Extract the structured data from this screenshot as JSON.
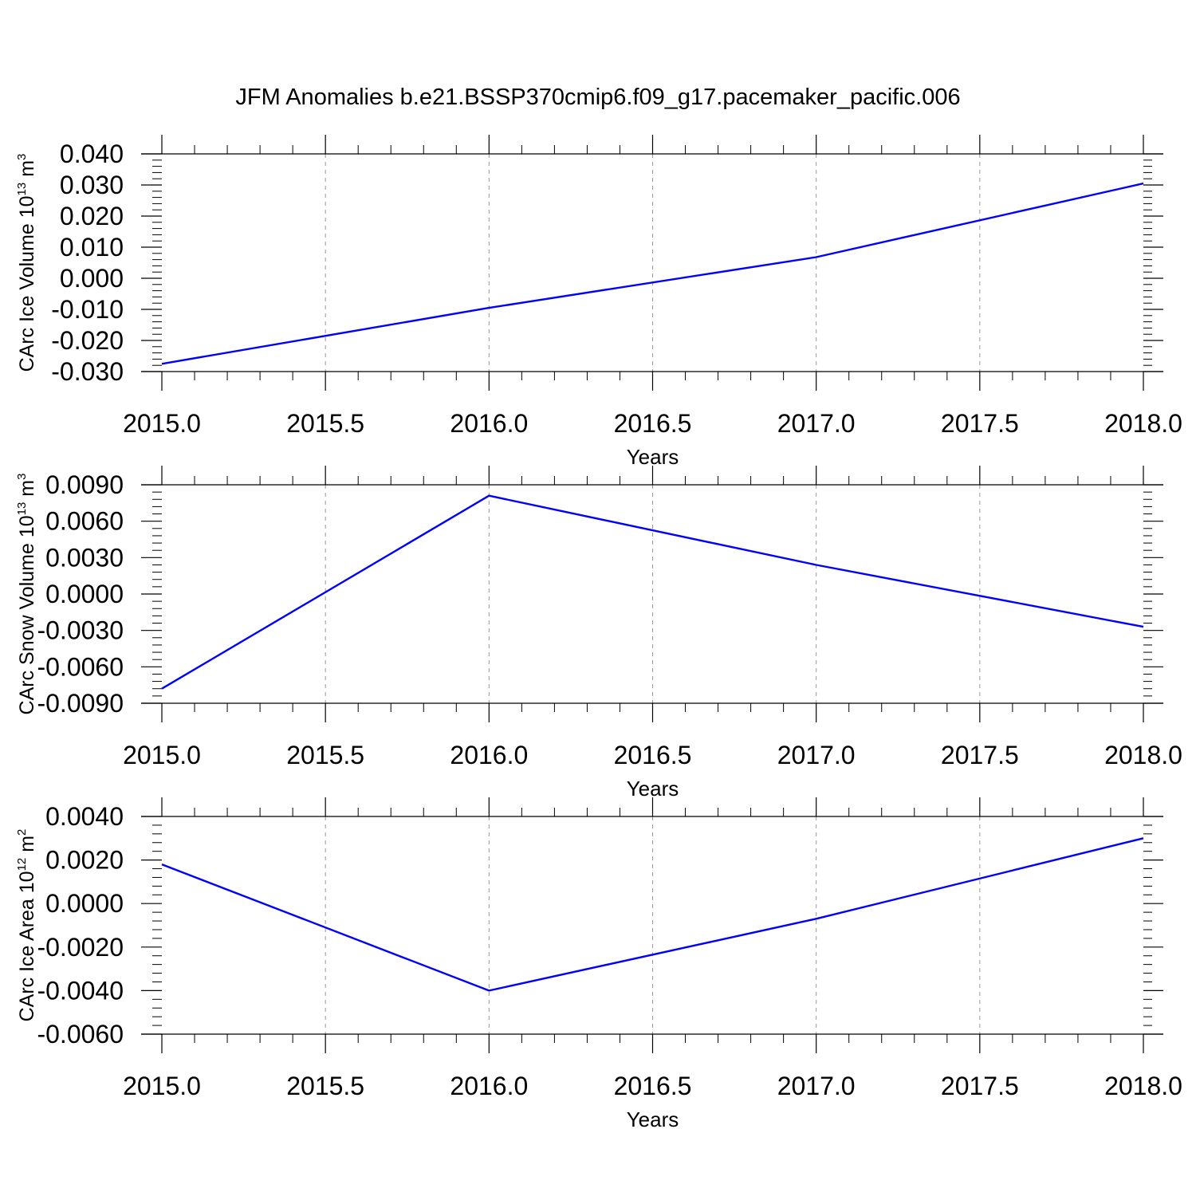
{
  "figure": {
    "title": "JFM Anomalies b.e21.BSSP370cmip6.f09_g17.pacemaker_pacific.006"
  },
  "style": {
    "line_color": "#0000ff",
    "grid_color": "#999999",
    "axis_color": "#000000"
  },
  "chart_data": [
    {
      "type": "line",
      "ylabel": {
        "prefix": "CArc Ice Volume 10",
        "exp": "13",
        "unit": " m",
        "unit_exp": "3"
      },
      "xlabel": "Years",
      "xlim": [
        2015.0,
        2018.0
      ],
      "x_ticks": [
        2015.0,
        2015.5,
        2016.0,
        2016.5,
        2017.0,
        2017.5,
        2018.0
      ],
      "x_tick_labels": [
        "2015.0",
        "2015.5",
        "2016.0",
        "2016.5",
        "2017.0",
        "2017.5",
        "2018.0"
      ],
      "ylim": [
        -0.03,
        0.04
      ],
      "y_ticks": [
        -0.03,
        -0.02,
        -0.01,
        0.0,
        0.01,
        0.02,
        0.03,
        0.04
      ],
      "y_tick_labels": [
        "-0.030",
        "-0.020",
        "-0.010",
        "0.000",
        "0.010",
        "0.020",
        "0.030",
        "0.040"
      ],
      "y_minor_step": 0.002,
      "grid": "vertical dashed at x ticks",
      "series": [
        {
          "x": [
            2015,
            2016,
            2017,
            2018
          ],
          "values": [
            -0.0275,
            -0.0095,
            0.0068,
            0.0305
          ]
        }
      ]
    },
    {
      "type": "line",
      "ylabel": {
        "prefix": "CArc Snow Volume 10",
        "exp": "13",
        "unit": " m",
        "unit_exp": "3"
      },
      "xlabel": "Years",
      "xlim": [
        2015.0,
        2018.0
      ],
      "x_ticks": [
        2015.0,
        2015.5,
        2016.0,
        2016.5,
        2017.0,
        2017.5,
        2018.0
      ],
      "x_tick_labels": [
        "2015.0",
        "2015.5",
        "2016.0",
        "2016.5",
        "2017.0",
        "2017.5",
        "2018.0"
      ],
      "ylim": [
        -0.009,
        0.009
      ],
      "y_ticks": [
        -0.009,
        -0.006,
        -0.003,
        0.0,
        0.003,
        0.006,
        0.009
      ],
      "y_tick_labels": [
        "-0.0090",
        "-0.0060",
        "-0.0030",
        "0.0000",
        "0.0030",
        "0.0060",
        "0.0090"
      ],
      "y_minor_step": 0.0006,
      "grid": "vertical dashed at x ticks",
      "series": [
        {
          "x": [
            2015,
            2016,
            2017,
            2018
          ],
          "values": [
            -0.0078,
            0.0081,
            0.0024,
            -0.0027
          ]
        }
      ]
    },
    {
      "type": "line",
      "ylabel": {
        "prefix": "CArc Ice Area 10",
        "exp": "12",
        "unit": " m",
        "unit_exp": "2"
      },
      "xlabel": "Years",
      "xlim": [
        2015.0,
        2018.0
      ],
      "x_ticks": [
        2015.0,
        2015.5,
        2016.0,
        2016.5,
        2017.0,
        2017.5,
        2018.0
      ],
      "x_tick_labels": [
        "2015.0",
        "2015.5",
        "2016.0",
        "2016.5",
        "2017.0",
        "2017.5",
        "2018.0"
      ],
      "ylim": [
        -0.006,
        0.004
      ],
      "y_ticks": [
        -0.006,
        -0.004,
        -0.002,
        0.0,
        0.002,
        0.004
      ],
      "y_tick_labels": [
        "-0.0060",
        "-0.0040",
        "-0.0020",
        "0.0000",
        "0.0020",
        "0.0040"
      ],
      "y_minor_step": 0.0004,
      "grid": "vertical dashed at x ticks",
      "series": [
        {
          "x": [
            2015,
            2016,
            2017,
            2018
          ],
          "values": [
            0.0018,
            -0.004,
            -0.0007,
            0.003
          ]
        }
      ]
    }
  ]
}
